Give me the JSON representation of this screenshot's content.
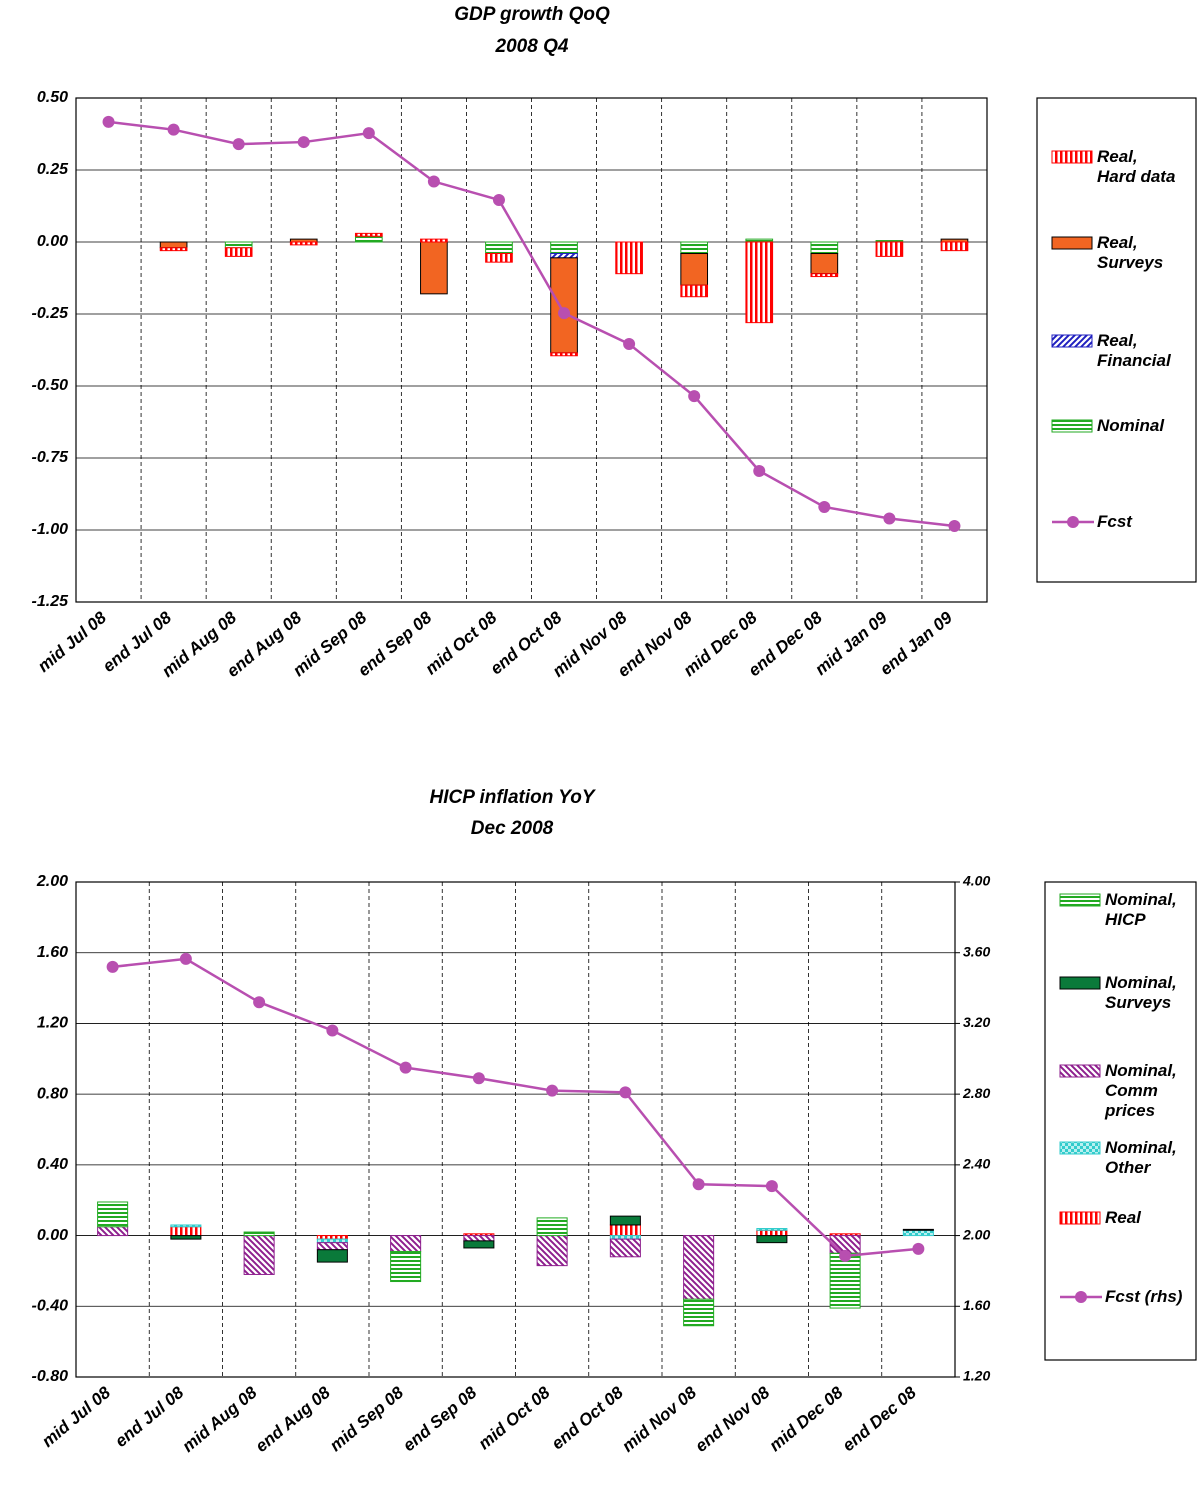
{
  "chart_data": [
    {
      "type": "combo",
      "title": "GDP growth QoQ",
      "subtitle": "2008 Q4",
      "categories": [
        "mid Jul 08",
        "end Jul 08",
        "mid Aug 08",
        "end Aug 08",
        "mid Sep 08",
        "end Sep 08",
        "mid Oct 08",
        "end Oct 08",
        "mid Nov 08",
        "end Nov 08",
        "mid Dec 08",
        "end Dec 08",
        "mid Jan 09",
        "end Jan 09"
      ],
      "ylim": [
        -1.25,
        0.5
      ],
      "yticks": [
        {
          "value": 0.5,
          "label": "0.50"
        },
        {
          "value": 0.25,
          "label": "0.25"
        },
        {
          "value": 0,
          "label": "0.00"
        },
        {
          "value": -0.25,
          "label": "-0.25"
        },
        {
          "value": -0.5,
          "label": "-0.50"
        },
        {
          "value": -0.75,
          "label": "-0.75"
        },
        {
          "value": -1,
          "label": "-1.00"
        },
        {
          "value": -1.25,
          "label": "-1.25"
        }
      ],
      "grid": true,
      "legend": "right",
      "series": [
        {
          "name": "Real,\nHard data",
          "kind": "bar",
          "color": "#ff0000",
          "pattern": "vertical",
          "values": [
            null,
            -0.01,
            -0.03,
            -0.01,
            0.01,
            0.01,
            -0.03,
            -0.01,
            -0.11,
            -0.04,
            -0.28,
            -0.01,
            -0.05,
            -0.03
          ]
        },
        {
          "name": "Real,\nSurveys",
          "kind": "bar",
          "color": "#f26522",
          "pattern": "solid",
          "values": [
            null,
            -0.02,
            null,
            0.01,
            null,
            -0.18,
            null,
            -0.33,
            null,
            -0.11,
            null,
            -0.07,
            null,
            0.01
          ]
        },
        {
          "name": "Real,\nFinancial",
          "kind": "bar",
          "color": "#2020c0",
          "pattern": "diagonal",
          "values": [
            null,
            null,
            null,
            null,
            null,
            null,
            null,
            -0.015,
            null,
            null,
            null,
            null,
            null,
            null
          ]
        },
        {
          "name": "Nominal",
          "kind": "bar",
          "color": "#22aa22",
          "pattern": "horizontal",
          "values": [
            null,
            null,
            -0.02,
            null,
            0.02,
            null,
            -0.04,
            -0.04,
            null,
            -0.04,
            0.01,
            -0.04,
            0.005,
            null
          ]
        },
        {
          "name": "Fcst",
          "kind": "line",
          "color": "#b84fb0",
          "values": [
            0.417,
            0.39,
            0.34,
            0.347,
            0.378,
            0.21,
            0.146,
            -0.247,
            -0.354,
            -0.535,
            -0.795,
            -0.92,
            -0.96,
            -0.986
          ]
        }
      ]
    },
    {
      "type": "combo",
      "title": "HICP inflation YoY",
      "subtitle": "Dec 2008",
      "categories": [
        "mid Jul 08",
        "end Jul 08",
        "mid Aug 08",
        "end Aug 08",
        "mid Sep 08",
        "end Sep 08",
        "mid Oct 08",
        "end Oct 08",
        "mid Nov 08",
        "end Nov 08",
        "mid Dec 08",
        "end Dec 08"
      ],
      "ylim": [
        -0.8,
        2.0
      ],
      "yticks": [
        {
          "value": 2,
          "label": "2.00"
        },
        {
          "value": 1.6,
          "label": "1.60"
        },
        {
          "value": 1.2,
          "label": "1.20"
        },
        {
          "value": 0.8,
          "label": "0.80"
        },
        {
          "value": 0.4,
          "label": "0.40"
        },
        {
          "value": 0,
          "label": "0.00"
        },
        {
          "value": -0.4,
          "label": "-0.40"
        },
        {
          "value": -0.8,
          "label": "-0.80"
        }
      ],
      "y2lim": [
        1.2,
        4.0
      ],
      "y2ticks": [
        {
          "value": 4,
          "label": "4.00"
        },
        {
          "value": 3.6,
          "label": "3.60"
        },
        {
          "value": 3.2,
          "label": "3.20"
        },
        {
          "value": 2.8,
          "label": "2.80"
        },
        {
          "value": 2.4,
          "label": "2.40"
        },
        {
          "value": 2,
          "label": "2.00"
        },
        {
          "value": 1.6,
          "label": "1.60"
        },
        {
          "value": 1.2,
          "label": "1.20"
        }
      ],
      "grid": true,
      "legend": "right",
      "series": [
        {
          "name": "Nominal,\nHICP",
          "kind": "bar",
          "color": "#22aa22",
          "pattern": "horizontal",
          "values": [
            0.14,
            null,
            0.02,
            null,
            -0.17,
            null,
            0.1,
            null,
            -0.15,
            null,
            -0.31,
            null
          ]
        },
        {
          "name": "Nominal,\nSurveys",
          "kind": "bar",
          "color": "#0a7a3a",
          "pattern": "solid",
          "values": [
            null,
            -0.02,
            null,
            -0.07,
            null,
            -0.04,
            null,
            0.05,
            null,
            -0.04,
            null,
            0.005
          ]
        },
        {
          "name": "Nominal,\nComm\nprices",
          "kind": "bar",
          "color": "#8e1f8e",
          "pattern": "diagonal2",
          "values": [
            0.05,
            null,
            -0.22,
            -0.04,
            -0.09,
            -0.03,
            -0.17,
            -0.1,
            -0.36,
            null,
            -0.1,
            null
          ]
        },
        {
          "name": "Nominal,\nOther",
          "kind": "bar",
          "color": "#33cccc",
          "pattern": "checker",
          "values": [
            null,
            0.01,
            null,
            -0.02,
            null,
            null,
            null,
            -0.02,
            null,
            0.01,
            null,
            0.03
          ]
        },
        {
          "name": "Real",
          "kind": "bar",
          "color": "#ff0000",
          "pattern": "vertical",
          "values": [
            null,
            0.05,
            null,
            -0.02,
            null,
            0.01,
            null,
            0.06,
            null,
            0.03,
            0.01,
            null
          ]
        },
        {
          "name": "Fcst (rhs)",
          "kind": "line",
          "axis": "y2",
          "color": "#b84fb0",
          "values": [
            3.52,
            3.565,
            3.32,
            3.16,
            2.95,
            2.89,
            2.82,
            2.81,
            2.29,
            2.28,
            1.885,
            1.925
          ]
        }
      ]
    }
  ]
}
